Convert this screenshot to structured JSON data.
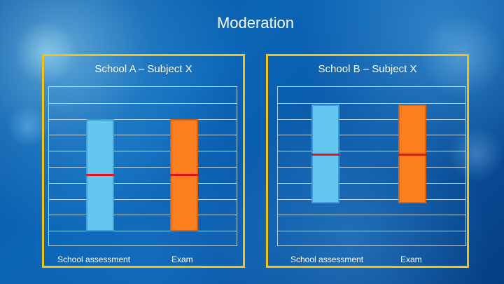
{
  "slide": {
    "title": "Moderation"
  },
  "panels": [
    {
      "title": "School A – Subject X",
      "labels": {
        "school_assessment": "School assessment",
        "exam": "Exam"
      }
    },
    {
      "title": "School B – Subject X",
      "labels": {
        "school_assessment": "School assessment",
        "exam": "Exam"
      }
    }
  ],
  "chart_data": [
    {
      "type": "bar",
      "title": "School A – Subject X",
      "categories": [
        "School assessment",
        "Exam"
      ],
      "series": [
        {
          "values": [
            [
              0.1,
              0.8
            ],
            [
              0.1,
              0.8
            ]
          ]
        }
      ],
      "median": [
        0.45,
        0.45
      ],
      "colors": {
        "School assessment": "#63c7f0",
        "Exam": "#fb7f1f",
        "median": "#e8101a",
        "frame": "#f2c21b"
      },
      "grid": true
    },
    {
      "type": "bar",
      "title": "School B – Subject X",
      "categories": [
        "School assessment",
        "Exam"
      ],
      "series": [
        {
          "values": [
            [
              0.27,
              0.89
            ],
            [
              0.27,
              0.89
            ]
          ]
        }
      ],
      "median": [
        0.58,
        0.58
      ],
      "colors": {
        "School assessment": "#63c7f0",
        "Exam": "#fb7f1f",
        "median": "#e8101a",
        "frame": "#f2c21b"
      },
      "grid": true
    }
  ]
}
